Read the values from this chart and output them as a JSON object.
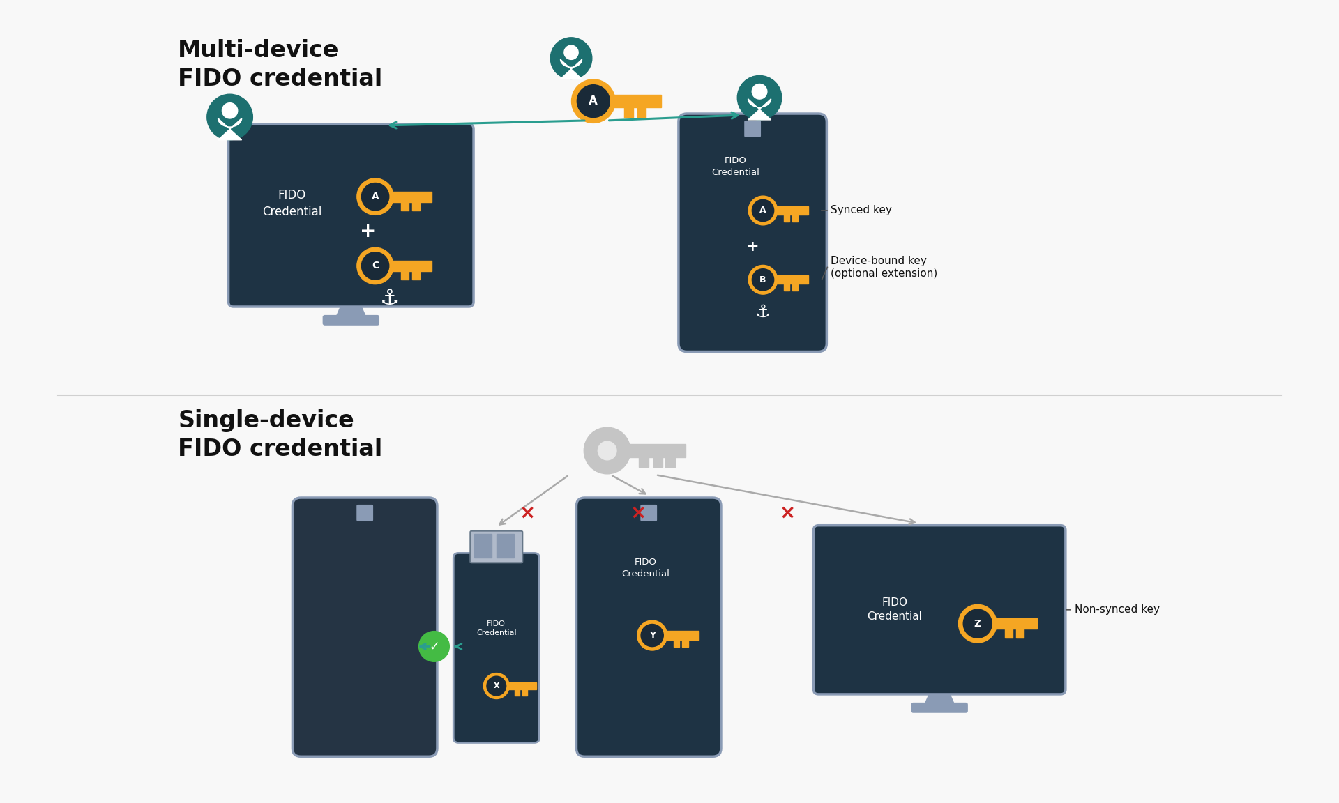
{
  "bg_color": "#f8f8f8",
  "device_dark": "#1e3344",
  "device_border": "#8a9bb5",
  "orange_key": "#f5a623",
  "teal_user": "#1d7070",
  "teal_arrow": "#2a9d8f",
  "gray_key_color": "#c5c5c5",
  "title1": "Multi-device\nFIDO credential",
  "title2": "Single-device\nFIDO credential",
  "label_synced": "Synced key",
  "label_device_bound": "Device-bound key\n(optional extension)",
  "label_non_synced": "Non-synced key",
  "red_x": "#cc2222",
  "green_check": "#44bb44",
  "white": "#ffffff",
  "black": "#111111"
}
